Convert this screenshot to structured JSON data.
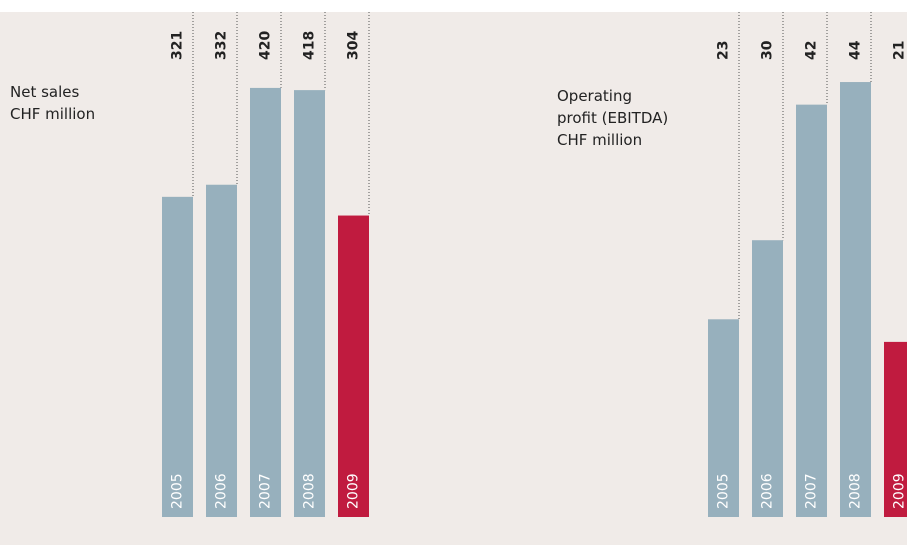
{
  "chart_data": [
    {
      "type": "bar",
      "title": [
        "Net sales",
        "CHF million"
      ],
      "categories": [
        "2005",
        "2006",
        "2007",
        "2008",
        "2009"
      ],
      "values": [
        321,
        332,
        420,
        418,
        304
      ],
      "colors": [
        "#97b0bd",
        "#97b0bd",
        "#97b0bd",
        "#97b0bd",
        "#c01b3f"
      ],
      "ylim": [
        30,
        489
      ]
    },
    {
      "type": "bar",
      "title": [
        "Operating",
        "profit (EBITDA)",
        "CHF million"
      ],
      "categories": [
        "2005",
        "2006",
        "2007",
        "2008",
        "2009"
      ],
      "values": [
        23,
        30,
        42,
        44,
        21
      ],
      "colors": [
        "#97b0bd",
        "#97b0bd",
        "#97b0bd",
        "#97b0bd",
        "#c01b3f"
      ],
      "ylim": [
        5.5,
        50.2
      ]
    }
  ]
}
